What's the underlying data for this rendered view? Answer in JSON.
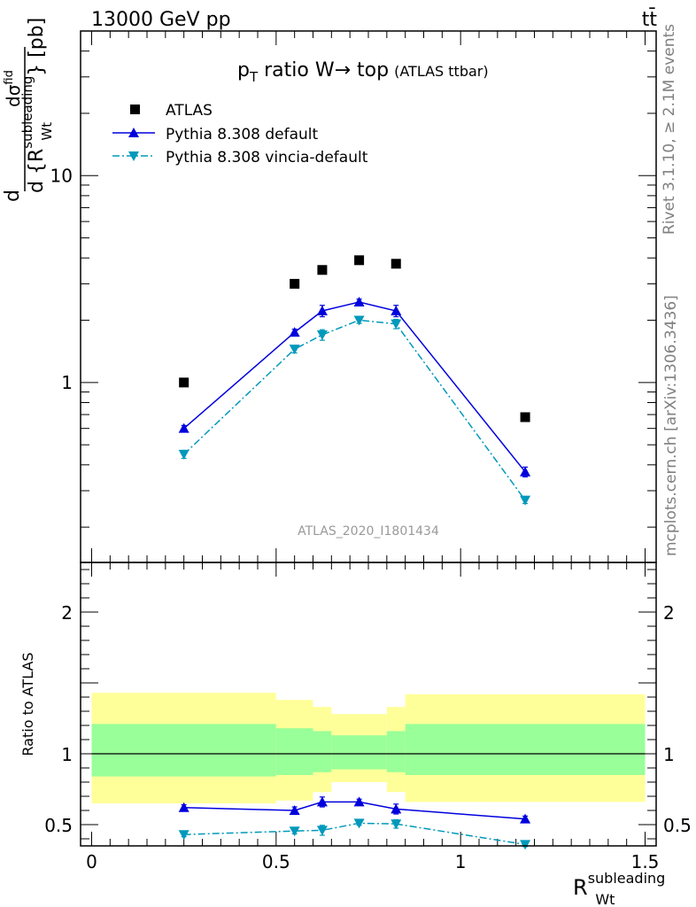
{
  "header": {
    "left": "13000 GeV pp",
    "right": "tt̄"
  },
  "side_labels": {
    "rivet": "Rivet 3.1.10, ≥ 2.1M events",
    "mcplots": "mcplots.cern.ch [arXiv:1306.3436]"
  },
  "chart_data": [
    {
      "type": "scatter",
      "panel": "main",
      "title": {
        "main": "p",
        "main_sub": "T",
        "main_rest": " ratio W→ top",
        "small": "(ATLAS ttbar)"
      },
      "ylabel": {
        "prefix": "d",
        "numerator": "dσ",
        "numerator_sup": "fid",
        "denominator": "d {R",
        "denominator_sup": "subleading",
        "denominator_sub": "Wt",
        "suffix": "} [pb]"
      },
      "watermark": "ATLAS_2020_I1801434",
      "yscale": "log",
      "xlim": [
        -0.03,
        1.53
      ],
      "ylim": [
        0.135,
        50
      ],
      "y_tick_labels": [
        {
          "value": 1,
          "label": "1"
        },
        {
          "value": 10,
          "label": "10"
        }
      ],
      "legend_position": "top-left",
      "series": [
        {
          "name": "ATLAS",
          "marker": "square",
          "color": "#000000",
          "x": [
            0.25,
            0.55,
            0.625,
            0.725,
            0.825,
            1.175
          ],
          "y": [
            1.0,
            3.0,
            3.5,
            3.9,
            3.75,
            0.68
          ]
        },
        {
          "name": "Pythia 8.308 default",
          "marker": "triangle-up",
          "line": "solid",
          "color": "#0000dd",
          "x": [
            0.25,
            0.55,
            0.625,
            0.725,
            0.825,
            1.175
          ],
          "y": [
            0.6,
            1.75,
            2.22,
            2.45,
            2.22,
            0.37
          ],
          "yerr": [
            0.02,
            0.06,
            0.14,
            0.08,
            0.14,
            0.02
          ]
        },
        {
          "name": "Pythia 8.308 vincia-default",
          "marker": "triangle-down",
          "line": "dashdot",
          "color": "#0099bb",
          "x": [
            0.25,
            0.55,
            0.625,
            0.725,
            0.825,
            1.175
          ],
          "y": [
            0.45,
            1.45,
            1.7,
            2.0,
            1.92,
            0.27
          ],
          "yerr": [
            0.02,
            0.06,
            0.1,
            0.07,
            0.1,
            0.01
          ]
        }
      ]
    },
    {
      "type": "line",
      "panel": "ratio",
      "ylabel": "Ratio to ATLAS",
      "xlabel": {
        "base": "R",
        "sup": "subleading",
        "sub": "Wt"
      },
      "xlim": [
        -0.03,
        1.53
      ],
      "ylim": [
        0.35,
        2.35
      ],
      "x_tick_labels": [
        {
          "value": 0,
          "label": "0"
        },
        {
          "value": 0.5,
          "label": "0.5"
        },
        {
          "value": 1,
          "label": "1"
        },
        {
          "value": 1.5,
          "label": "1.5"
        }
      ],
      "y_tick_labels": [
        {
          "value": 0.5,
          "label": "0.5"
        },
        {
          "value": 1,
          "label": "1"
        },
        {
          "value": 2,
          "label": "2"
        }
      ],
      "bands": {
        "bins": [
          [
            0.0,
            0.5
          ],
          [
            0.5,
            0.6
          ],
          [
            0.6,
            0.65
          ],
          [
            0.65,
            0.8
          ],
          [
            0.8,
            0.85
          ],
          [
            0.85,
            1.5
          ]
        ],
        "outer_color": "#ffff99",
        "inner_color": "#99ff99",
        "outer": [
          [
            0.65,
            1.43
          ],
          [
            0.67,
            1.38
          ],
          [
            0.73,
            1.33
          ],
          [
            0.8,
            1.28
          ],
          [
            0.73,
            1.33
          ],
          [
            0.66,
            1.42
          ]
        ],
        "inner": [
          [
            0.84,
            1.21
          ],
          [
            0.85,
            1.18
          ],
          [
            0.87,
            1.16
          ],
          [
            0.89,
            1.13
          ],
          [
            0.87,
            1.16
          ],
          [
            0.85,
            1.21
          ]
        ]
      },
      "reference_line": 1,
      "series": [
        {
          "name": "Pythia 8.308 default",
          "marker": "triangle-up",
          "line": "solid",
          "color": "#0000dd",
          "x": [
            0.25,
            0.55,
            0.625,
            0.725,
            0.825,
            1.175
          ],
          "y": [
            0.62,
            0.6,
            0.66,
            0.66,
            0.61,
            0.54
          ],
          "yerr": [
            0.02,
            0.025,
            0.035,
            0.02,
            0.035,
            0.02
          ]
        },
        {
          "name": "Pythia 8.308 vincia-default",
          "marker": "triangle-down",
          "line": "dashdot",
          "color": "#0099bb",
          "x": [
            0.25,
            0.55,
            0.625,
            0.725,
            0.825,
            1.175
          ],
          "y": [
            0.43,
            0.455,
            0.46,
            0.51,
            0.505,
            0.36
          ],
          "yerr": [
            0.015,
            0.02,
            0.035,
            0.015,
            0.03,
            0.015
          ]
        }
      ]
    }
  ]
}
